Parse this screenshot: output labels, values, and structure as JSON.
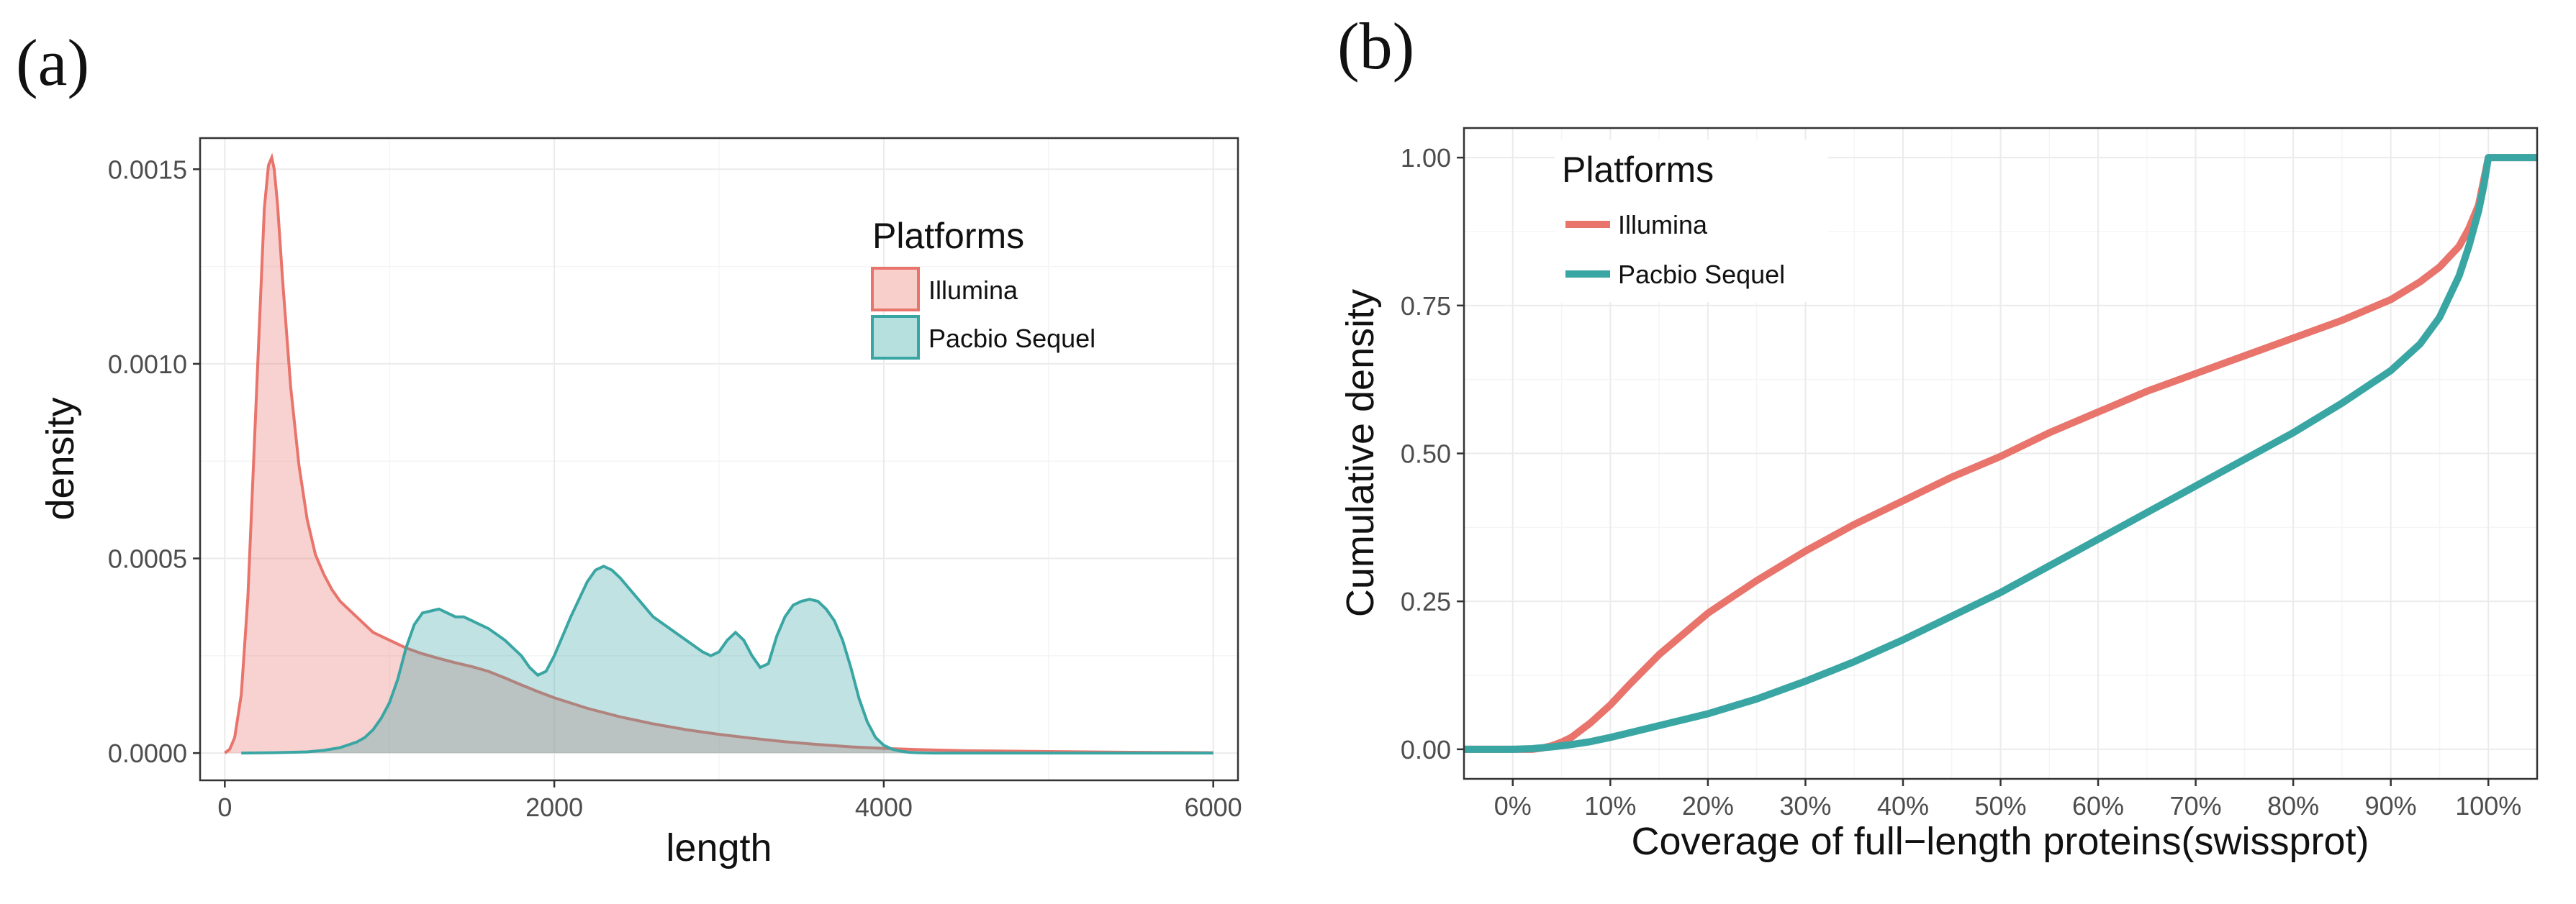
{
  "colors": {
    "illumina": "#e8746c",
    "pacbio": "#3aa6a4"
  },
  "chart_data": [
    {
      "type": "area",
      "panel_label": "(a)",
      "title": "",
      "xlabel": "length",
      "ylabel": "density",
      "xlim": [
        -150,
        6150
      ],
      "ylim": [
        -7e-05,
        0.00158
      ],
      "xticks": [
        0,
        2000,
        4000,
        6000
      ],
      "xtick_labels": [
        "0",
        "2000",
        "4000",
        "6000"
      ],
      "yticks": [
        0,
        0.0005,
        0.001,
        0.0015
      ],
      "ytick_labels": [
        "0.0000",
        "0.0005",
        "0.0010",
        "0.0015"
      ],
      "legend": {
        "title": "Platforms",
        "position": "top-right",
        "entries": [
          "Illumina",
          "Pacbio Sequel"
        ]
      },
      "series": [
        {
          "name": "Illumina",
          "x": [
            0,
            30,
            60,
            100,
            140,
            180,
            210,
            240,
            265,
            285,
            300,
            320,
            350,
            400,
            450,
            500,
            550,
            600,
            650,
            700,
            800,
            900,
            1000,
            1100,
            1200,
            1300,
            1400,
            1500,
            1600,
            1700,
            1800,
            1900,
            2000,
            2200,
            2400,
            2600,
            2800,
            3000,
            3200,
            3400,
            3600,
            3800,
            4000,
            4200,
            4500,
            5000,
            5500,
            6000
          ],
          "values": [
            0.0,
            1e-05,
            4e-05,
            0.00015,
            0.0004,
            0.0008,
            0.0011,
            0.0014,
            0.00151,
            0.00153,
            0.0015,
            0.00141,
            0.00122,
            0.00094,
            0.00074,
            0.0006,
            0.00051,
            0.00046,
            0.00042,
            0.00039,
            0.00035,
            0.00031,
            0.00029,
            0.00027,
            0.000255,
            0.000243,
            0.000232,
            0.000222,
            0.00021,
            0.000193,
            0.000175,
            0.000158,
            0.000142,
            0.000115,
            9.3e-05,
            7.5e-05,
            6e-05,
            4.8e-05,
            3.8e-05,
            2.9e-05,
            2.2e-05,
            1.6e-05,
            1.2e-05,
            9e-06,
            6e-06,
            4e-06,
            2e-06,
            1e-06
          ]
        },
        {
          "name": "Pacbio Sequel",
          "x": [
            100,
            300,
            500,
            600,
            700,
            800,
            850,
            900,
            950,
            1000,
            1050,
            1100,
            1150,
            1200,
            1300,
            1400,
            1450,
            1500,
            1550,
            1600,
            1700,
            1800,
            1850,
            1900,
            1950,
            2000,
            2100,
            2200,
            2250,
            2300,
            2350,
            2400,
            2500,
            2600,
            2700,
            2800,
            2900,
            2950,
            3000,
            3050,
            3100,
            3150,
            3200,
            3250,
            3300,
            3350,
            3400,
            3450,
            3500,
            3550,
            3600,
            3650,
            3700,
            3750,
            3800,
            3850,
            3900,
            3950,
            4000,
            4050,
            4100,
            4150,
            4200,
            4300,
            4500,
            5000,
            6000
          ],
          "values": [
            0.0,
            1e-06,
            3e-06,
            7e-06,
            1.4e-05,
            2.8e-05,
            4e-05,
            6e-05,
            9e-05,
            0.00013,
            0.00019,
            0.00027,
            0.00033,
            0.00036,
            0.00037,
            0.00035,
            0.00035,
            0.00034,
            0.00033,
            0.00032,
            0.00029,
            0.00025,
            0.00022,
            0.0002,
            0.00021,
            0.00025,
            0.00035,
            0.00044,
            0.00047,
            0.00048,
            0.00047,
            0.00045,
            0.0004,
            0.00035,
            0.00032,
            0.00029,
            0.00026,
            0.00025,
            0.00026,
            0.00029,
            0.00031,
            0.00029,
            0.00025,
            0.00022,
            0.00023,
            0.0003,
            0.00035,
            0.00038,
            0.00039,
            0.000395,
            0.00039,
            0.00037,
            0.00034,
            0.00029,
            0.00022,
            0.00014,
            8e-05,
            4e-05,
            2e-05,
            1e-05,
            5e-06,
            2e-06,
            1e-06,
            0.0,
            0.0,
            0.0,
            0.0
          ]
        }
      ]
    },
    {
      "type": "line",
      "panel_label": "(b)",
      "title": "",
      "xlabel": "Coverage of full−length proteins(swissprot)",
      "ylabel": "Cumulative density",
      "xlim": [
        -0.05,
        1.05
      ],
      "ylim": [
        -0.05,
        1.05
      ],
      "xticks": [
        0,
        0.1,
        0.2,
        0.3,
        0.4,
        0.5,
        0.6,
        0.7,
        0.8,
        0.9,
        1.0
      ],
      "xtick_labels": [
        "0%",
        "10%",
        "20%",
        "30%",
        "40%",
        "50%",
        "60%",
        "70%",
        "80%",
        "90%",
        "100%"
      ],
      "yticks": [
        0,
        0.25,
        0.5,
        0.75,
        1.0
      ],
      "ytick_labels": [
        "0.00",
        "0.25",
        "0.50",
        "0.75",
        "1.00"
      ],
      "legend": {
        "title": "Platforms",
        "position": "top-left",
        "entries": [
          "Illumina",
          "Pacbio Sequel"
        ]
      },
      "series": [
        {
          "name": "Illumina",
          "x": [
            -0.05,
            0.0,
            0.02,
            0.03,
            0.04,
            0.05,
            0.06,
            0.08,
            0.1,
            0.12,
            0.15,
            0.2,
            0.25,
            0.3,
            0.35,
            0.4,
            0.45,
            0.5,
            0.55,
            0.6,
            0.65,
            0.7,
            0.75,
            0.8,
            0.85,
            0.9,
            0.93,
            0.95,
            0.97,
            0.98,
            0.99,
            0.995,
            1.0,
            1.05
          ],
          "values": [
            0.0,
            0.0,
            0.0,
            0.002,
            0.006,
            0.012,
            0.02,
            0.045,
            0.075,
            0.11,
            0.16,
            0.23,
            0.285,
            0.335,
            0.38,
            0.42,
            0.46,
            0.495,
            0.535,
            0.57,
            0.605,
            0.635,
            0.665,
            0.695,
            0.725,
            0.76,
            0.79,
            0.815,
            0.85,
            0.88,
            0.92,
            0.96,
            1.0,
            1.0
          ]
        },
        {
          "name": "Pacbio Sequel",
          "x": [
            -0.05,
            0.0,
            0.02,
            0.04,
            0.06,
            0.08,
            0.1,
            0.15,
            0.2,
            0.25,
            0.3,
            0.35,
            0.4,
            0.45,
            0.5,
            0.55,
            0.6,
            0.65,
            0.7,
            0.75,
            0.8,
            0.85,
            0.9,
            0.93,
            0.95,
            0.97,
            0.98,
            0.99,
            0.995,
            1.0,
            1.05
          ],
          "values": [
            0.0,
            0.0,
            0.001,
            0.004,
            0.008,
            0.013,
            0.02,
            0.04,
            0.06,
            0.085,
            0.115,
            0.148,
            0.185,
            0.225,
            0.265,
            0.31,
            0.355,
            0.4,
            0.445,
            0.49,
            0.535,
            0.585,
            0.64,
            0.685,
            0.73,
            0.8,
            0.85,
            0.91,
            0.95,
            1.0,
            1.0
          ]
        }
      ]
    }
  ]
}
